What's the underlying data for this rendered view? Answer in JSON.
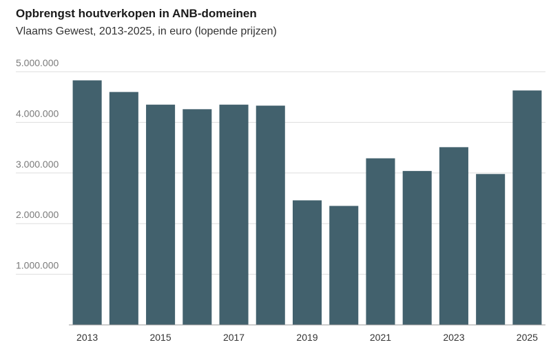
{
  "chart_data": {
    "type": "bar",
    "title": "Opbrengst houtverkopen in ANB-domeinen",
    "subtitle": "Vlaams Gewest, 2013-2025, in euro (lopende prijzen)",
    "categories": [
      "2013",
      "2014",
      "2015",
      "2016",
      "2017",
      "2018",
      "2019",
      "2020",
      "2021",
      "2022",
      "2023",
      "2024",
      "2025"
    ],
    "x_tick_labels": [
      "2013",
      "",
      "2015",
      "",
      "2017",
      "",
      "2019",
      "",
      "2021",
      "",
      "2023",
      "",
      "2025"
    ],
    "values": [
      4830000,
      4600000,
      4350000,
      4260000,
      4350000,
      4330000,
      2460000,
      2350000,
      3290000,
      3040000,
      3510000,
      2980000,
      4630000
    ],
    "y_ticks": [
      1000000,
      2000000,
      3000000,
      4000000,
      5000000
    ],
    "y_tick_labels": [
      "1.000.000",
      "2.000.000",
      "3.000.000",
      "4.000.000",
      "5.000.000"
    ],
    "ylim": [
      0,
      5000000
    ],
    "xlabel": "",
    "ylabel": "",
    "grid": true,
    "bar_color": "#42616d",
    "gridline_color": "#dddddd",
    "axis_color": "#999999"
  }
}
